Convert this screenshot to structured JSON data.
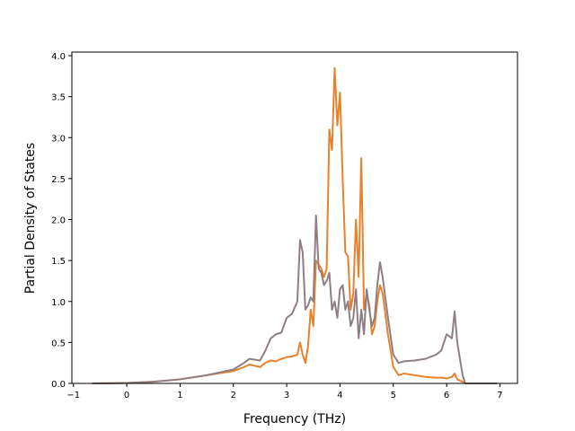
{
  "chart_data": {
    "type": "line",
    "xlabel": "Frequency (THz)",
    "ylabel": "Partial Density of States",
    "x": [
      -0.65,
      0,
      0.5,
      1.0,
      1.5,
      2.0,
      2.2,
      2.3,
      2.5,
      2.6,
      2.7,
      2.8,
      2.9,
      3.0,
      3.1,
      3.2,
      3.25,
      3.3,
      3.35,
      3.4,
      3.45,
      3.5,
      3.55,
      3.6,
      3.65,
      3.7,
      3.75,
      3.8,
      3.85,
      3.9,
      3.95,
      4.0,
      4.05,
      4.1,
      4.15,
      4.2,
      4.25,
      4.3,
      4.35,
      4.4,
      4.45,
      4.5,
      4.55,
      4.6,
      4.65,
      4.7,
      4.75,
      4.8,
      4.9,
      5.0,
      5.1,
      5.2,
      5.4,
      5.6,
      5.8,
      5.9,
      6.0,
      6.1,
      6.15,
      6.2,
      6.3,
      6.35,
      6.95
    ],
    "series": [
      {
        "color": "#e8822a",
        "values": [
          0,
          0.005,
          0.02,
          0.05,
          0.1,
          0.15,
          0.2,
          0.23,
          0.2,
          0.25,
          0.28,
          0.27,
          0.3,
          0.32,
          0.33,
          0.35,
          0.5,
          0.35,
          0.25,
          0.45,
          0.9,
          0.7,
          1.5,
          1.45,
          1.4,
          1.3,
          1.4,
          3.1,
          2.85,
          3.85,
          3.15,
          3.55,
          2.5,
          1.6,
          1.55,
          0.9,
          1.1,
          2.0,
          1.3,
          2.75,
          0.9,
          1.1,
          0.95,
          0.6,
          0.7,
          1.0,
          1.2,
          1.1,
          0.6,
          0.2,
          0.1,
          0.12,
          0.1,
          0.08,
          0.07,
          0.07,
          0.06,
          0.08,
          0.12,
          0.05,
          0.02,
          0,
          0
        ]
      },
      {
        "color": "#8f7f85",
        "values": [
          0,
          0.005,
          0.02,
          0.05,
          0.1,
          0.17,
          0.25,
          0.3,
          0.28,
          0.4,
          0.55,
          0.6,
          0.62,
          0.8,
          0.85,
          1.0,
          1.75,
          1.6,
          0.9,
          0.95,
          1.05,
          1.0,
          2.05,
          1.4,
          1.35,
          1.2,
          1.25,
          1.35,
          0.9,
          1.0,
          0.8,
          1.15,
          1.2,
          0.9,
          1.0,
          0.7,
          0.8,
          1.15,
          0.55,
          0.9,
          0.6,
          1.15,
          0.9,
          0.7,
          0.8,
          1.2,
          1.48,
          1.3,
          0.8,
          0.35,
          0.25,
          0.27,
          0.28,
          0.3,
          0.35,
          0.4,
          0.6,
          0.55,
          0.88,
          0.5,
          0.1,
          0,
          0
        ]
      }
    ],
    "xlim": [
      -1.03,
      7.33
    ],
    "xticks": [
      {
        "value": -1,
        "label": "−1"
      },
      0,
      1,
      2,
      3,
      4,
      5,
      6,
      7
    ],
    "ylim": [
      0,
      4.044
    ],
    "yticks": [
      {
        "value": 0,
        "label": "0.0"
      },
      {
        "value": 0.5,
        "label": "0.5"
      },
      {
        "value": 1,
        "label": "1.0"
      },
      {
        "value": 1.5,
        "label": "1.5"
      },
      {
        "value": 2,
        "label": "2.0"
      },
      {
        "value": 2.5,
        "label": "2.5"
      },
      {
        "value": 3,
        "label": "3.0"
      },
      {
        "value": 3.5,
        "label": "3.5"
      },
      {
        "value": 4,
        "label": "4.0"
      }
    ],
    "grid": false
  }
}
